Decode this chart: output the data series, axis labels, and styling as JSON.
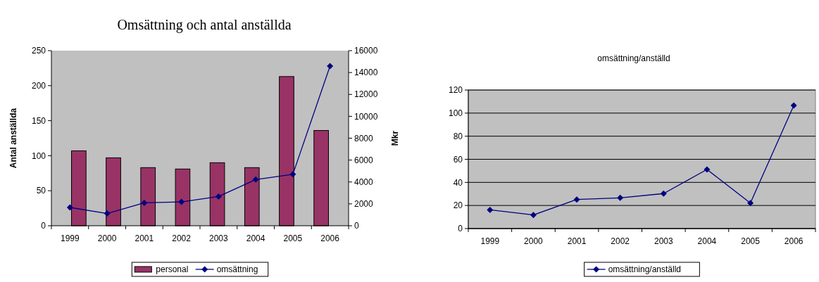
{
  "chart_data": [
    {
      "type": "bar",
      "title": "Omsättning och antal anställda",
      "categories": [
        "1999",
        "2000",
        "2001",
        "2002",
        "2003",
        "2004",
        "2005",
        "2006"
      ],
      "ylabel": "Antal anställda",
      "y2label": "Mkr",
      "ylim": [
        0,
        250
      ],
      "yticks": [
        0,
        50,
        100,
        150,
        200,
        250
      ],
      "y2lim": [
        0,
        16000
      ],
      "y2ticks": [
        0,
        2000,
        4000,
        6000,
        8000,
        10000,
        12000,
        14000,
        16000
      ],
      "grid": false,
      "legend": "bottom",
      "marker": "diamond",
      "series": [
        {
          "name": "personal",
          "color": "#993366",
          "values": [
            107,
            97,
            83,
            81,
            90,
            83,
            213,
            136
          ]
        },
        {
          "name": "omsättning",
          "type": "line",
          "axis": "y2",
          "color": "#000080",
          "values": [
            1670,
            1120,
            2090,
            2180,
            2670,
            4220,
            4700,
            14590
          ]
        }
      ]
    },
    {
      "type": "line",
      "title": "omsättning/anställd",
      "categories": [
        "1999",
        "2000",
        "2001",
        "2002",
        "2003",
        "2004",
        "2005",
        "2006"
      ],
      "ylim": [
        0,
        120
      ],
      "yticks": [
        0,
        20,
        40,
        60,
        80,
        100,
        120
      ],
      "grid": "y",
      "legend": "bottom",
      "marker": "diamond",
      "series": [
        {
          "name": "omsättning/anställd",
          "color": "#000080",
          "values": [
            16.2,
            11.8,
            25.2,
            26.6,
            30.3,
            51.2,
            22.1,
            106.6
          ]
        }
      ]
    }
  ]
}
